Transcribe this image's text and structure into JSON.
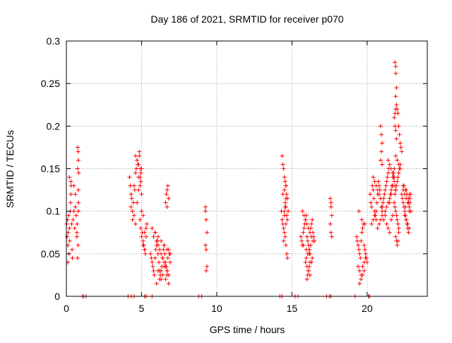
{
  "chart_data": {
    "type": "scatter",
    "title": "Day 186 of 2021, SRMTID for receiver p070",
    "xlabel": "GPS time / hours",
    "ylabel": "SRMTID / TECUs",
    "xlim": [
      0,
      24
    ],
    "ylim": [
      0,
      0.3
    ],
    "xticks": [
      0,
      5,
      10,
      15,
      20
    ],
    "xtick_labels": [
      "0",
      "5",
      "10",
      "15",
      "20"
    ],
    "yticks": [
      0,
      0.05,
      0.1,
      0.15,
      0.2,
      0.25,
      0.3
    ],
    "ytick_labels": [
      "0",
      "0.05",
      "0.1",
      "0.15",
      "0.2",
      "0.25",
      "0.3"
    ],
    "grid": true,
    "marker": "+",
    "series_color": "#ff0000",
    "series": [
      {
        "name": "SRMTID",
        "x": [
          0.02,
          0.05,
          0.08,
          0.1,
          0.12,
          0.15,
          0.18,
          0.2,
          0.22,
          0.25,
          0.28,
          0.3,
          0.32,
          0.35,
          0.38,
          0.4,
          0.1,
          0.2,
          0.3,
          0.45,
          0.5,
          0.55,
          0.6,
          0.65,
          0.7,
          0.72,
          0.75,
          0.78,
          0.8,
          0.5,
          0.6,
          0.7,
          0.75,
          0.8,
          0.75,
          0.78,
          0.8,
          0.82,
          0.8,
          1.05,
          1.15,
          1.3,
          4.1,
          4.3,
          4.5,
          4.2,
          4.25,
          4.3,
          4.35,
          4.4,
          4.45,
          4.5,
          4.55,
          4.6,
          4.65,
          4.7,
          4.75,
          4.8,
          4.85,
          4.9,
          4.95,
          5.0,
          4.3,
          4.4,
          4.5,
          4.6,
          4.7,
          4.8,
          4.9,
          5.0,
          4.6,
          4.7,
          4.8,
          4.9,
          4.95,
          4.85,
          4.9,
          4.95,
          5.0,
          5.05,
          5.1,
          5.15,
          5.2,
          5.25,
          5.3,
          5.35,
          5.0,
          5.1,
          5.2,
          5.3,
          5.1,
          5.2,
          5.2,
          5.3,
          5.7,
          5.6,
          5.65,
          5.7,
          5.75,
          5.8,
          5.85,
          5.9,
          5.95,
          6.0,
          6.05,
          6.1,
          6.15,
          6.2,
          6.25,
          6.3,
          6.35,
          6.4,
          6.45,
          6.5,
          6.55,
          6.6,
          6.65,
          6.7,
          6.75,
          6.8,
          6.85,
          6.9,
          5.8,
          5.9,
          6.0,
          6.1,
          6.2,
          6.3,
          6.4,
          6.5,
          6.6,
          6.7,
          6.8,
          5.7,
          5.9,
          6.1,
          6.3,
          6.5,
          6.7,
          6.9,
          6.0,
          6.2,
          6.4,
          6.6,
          6.8,
          6.1,
          6.3,
          6.5,
          6.7,
          6.6,
          6.65,
          6.7,
          6.75,
          6.8,
          6.7,
          8.8,
          9.0,
          9.25,
          9.3,
          9.35,
          9.25,
          9.3,
          9.35,
          9.3,
          9.25,
          14.2,
          14.35,
          14.3,
          14.35,
          14.4,
          14.45,
          14.5,
          14.55,
          14.6,
          14.65,
          14.7,
          14.75,
          14.4,
          14.5,
          14.6,
          14.7,
          14.5,
          14.6,
          14.55,
          14.45,
          14.35,
          14.4,
          14.45,
          14.5,
          14.55,
          14.6,
          14.65,
          14.6,
          14.55,
          14.5,
          14.6,
          14.65,
          14.7,
          15.2,
          15.4,
          15.6,
          15.65,
          15.7,
          15.75,
          15.8,
          15.85,
          15.9,
          15.95,
          16.0,
          16.05,
          16.1,
          16.15,
          16.2,
          16.25,
          16.3,
          16.35,
          16.4,
          16.45,
          16.5,
          15.7,
          15.8,
          15.9,
          16.0,
          16.1,
          16.2,
          16.3,
          16.4,
          15.75,
          15.95,
          16.15,
          16.35,
          15.9,
          16.0,
          16.1,
          16.2,
          16.3,
          15.95,
          16.05,
          16.15,
          16.25,
          16.0,
          16.05,
          16.1,
          16.15,
          16.2,
          17.3,
          17.5,
          17.6,
          17.55,
          17.6,
          17.65,
          17.55,
          17.6,
          17.65,
          17.6,
          19.2,
          19.3,
          19.35,
          19.4,
          19.45,
          19.5,
          19.55,
          19.6,
          19.65,
          19.7,
          19.75,
          19.8,
          19.85,
          19.9,
          19.95,
          20.0,
          19.4,
          19.5,
          19.6,
          19.7,
          19.8,
          19.9,
          19.45,
          19.65,
          19.85,
          19.5,
          19.6,
          19.7,
          19.8,
          20.1,
          20.15,
          20.2,
          20.25,
          20.3,
          20.35,
          20.4,
          20.45,
          20.5,
          20.55,
          20.6,
          20.65,
          20.7,
          20.75,
          20.8,
          20.85,
          20.9,
          20.95,
          21.0,
          20.3,
          20.4,
          20.5,
          20.6,
          20.7,
          20.8,
          20.9,
          21.0,
          20.4,
          20.5,
          20.6,
          20.7,
          20.8,
          20.9,
          21.0,
          21.05,
          21.1,
          21.15,
          21.2,
          21.25,
          21.3,
          21.35,
          21.4,
          21.45,
          21.5,
          21.55,
          21.6,
          21.65,
          21.7,
          21.75,
          21.8,
          21.1,
          21.2,
          21.3,
          21.4,
          21.5,
          21.6,
          21.7,
          20.9,
          20.95,
          21.0,
          20.95,
          20.9,
          21.0,
          21.2,
          21.3,
          21.4,
          21.5,
          21.6,
          21.7,
          21.4,
          21.5,
          21.6,
          21.7,
          21.8,
          21.8,
          21.85,
          21.9,
          21.95,
          22.0,
          22.05,
          22.1,
          22.15,
          22.2,
          22.25,
          22.3,
          21.9,
          22.0,
          22.1,
          22.2,
          21.85,
          21.9,
          21.95,
          22.0,
          22.05,
          22.1,
          22.15,
          22.2,
          21.8,
          21.85,
          21.9,
          21.95,
          22.0,
          22.05,
          22.1,
          21.9,
          21.95,
          22.0,
          22.05,
          22.1,
          21.85,
          21.9,
          21.9,
          21.95,
          21.9,
          21.95,
          21.9,
          21.85,
          21.75,
          21.8,
          21.85,
          21.9,
          22.3,
          22.35,
          22.4,
          22.45,
          22.5,
          22.55,
          22.6,
          22.65,
          22.7,
          22.75,
          22.8,
          22.85,
          22.9,
          22.4,
          22.5,
          22.6,
          22.7,
          22.8,
          22.9,
          22.45,
          22.55,
          22.65,
          22.75,
          22.85,
          22.5,
          22.6,
          22.7,
          22.8,
          22.9,
          22.55,
          22.75,
          22.4,
          22.6,
          22.8
        ],
        "y": [
          0.085,
          0.07,
          0.09,
          0.06,
          0.075,
          0.095,
          0.05,
          0.08,
          0.065,
          0.1,
          0.11,
          0.12,
          0.13,
          0.085,
          0.055,
          0.045,
          0.04,
          0.14,
          0.135,
          0.09,
          0.1,
          0.08,
          0.105,
          0.095,
          0.075,
          0.085,
          0.045,
          0.06,
          0.11,
          0.13,
          0.12,
          0.07,
          0.15,
          0.1,
          0.175,
          0.17,
          0.16,
          0.145,
          0.125,
          0,
          0,
          0,
          0,
          0,
          0,
          0.14,
          0.13,
          0.12,
          0.115,
          0.1,
          0.11,
          0.13,
          0.125,
          0.145,
          0.15,
          0.16,
          0.155,
          0.14,
          0.165,
          0.15,
          0.135,
          0.12,
          0.105,
          0.09,
          0.095,
          0.085,
          0.11,
          0.125,
          0.14,
          0.15,
          0.165,
          0.16,
          0.155,
          0.13,
          0.145,
          0.17,
          0.09,
          0.08,
          0.07,
          0.075,
          0.065,
          0.06,
          0.055,
          0.05,
          0.08,
          0.085,
          0.1,
          0.095,
          0.075,
          0.07,
          0.06,
          0.055,
          0,
          0,
          0,
          0.05,
          0.045,
          0.04,
          0.035,
          0.03,
          0.025,
          0.045,
          0.055,
          0.06,
          0.065,
          0.05,
          0.04,
          0.03,
          0.025,
          0.02,
          0.035,
          0.045,
          0.055,
          0.06,
          0.05,
          0.04,
          0.035,
          0.03,
          0.045,
          0.055,
          0.05,
          0.04,
          0.07,
          0.075,
          0.065,
          0.06,
          0.055,
          0.05,
          0.045,
          0.04,
          0.035,
          0.03,
          0.025,
          0.08,
          0.075,
          0.07,
          0.065,
          0.06,
          0.055,
          0.05,
          0.015,
          0.02,
          0.025,
          0.02,
          0.015,
          0.03,
          0.03,
          0.035,
          0.025,
          0.11,
          0.12,
          0.125,
          0.13,
          0.115,
          0.105,
          0,
          0,
          0.1,
          0.09,
          0.075,
          0.06,
          0.055,
          0.035,
          0.03,
          0.105,
          0,
          0,
          0.1,
          0.09,
          0.085,
          0.08,
          0.075,
          0.11,
          0.105,
          0.095,
          0.09,
          0.1,
          0.12,
          0.125,
          0.13,
          0.115,
          0.095,
          0.085,
          0.07,
          0.065,
          0.165,
          0.155,
          0.15,
          0.14,
          0.135,
          0.13,
          0.12,
          0.115,
          0.105,
          0.1,
          0.06,
          0.05,
          0.045,
          0,
          0,
          0.07,
          0.065,
          0.06,
          0.075,
          0.08,
          0.085,
          0.09,
          0.095,
          0.07,
          0.065,
          0.06,
          0.055,
          0.05,
          0.08,
          0.085,
          0.09,
          0.075,
          0.07,
          0.065,
          0.1,
          0.095,
          0.09,
          0.085,
          0.08,
          0.075,
          0.07,
          0.065,
          0.06,
          0.055,
          0.05,
          0.045,
          0.04,
          0.035,
          0.03,
          0.025,
          0.04,
          0.045,
          0.05,
          0.055,
          0.06,
          0.02,
          0.025,
          0.03,
          0.035,
          0.04,
          0,
          0,
          0,
          0.115,
          0.105,
          0.095,
          0.085,
          0.075,
          0.07,
          0.11,
          0,
          0.07,
          0.065,
          0.06,
          0.055,
          0.05,
          0.045,
          0.065,
          0.075,
          0.08,
          0.085,
          0.06,
          0.055,
          0.05,
          0.045,
          0.04,
          0.035,
          0.03,
          0.025,
          0.035,
          0.04,
          0.045,
          0.1,
          0.09,
          0.085,
          0.015,
          0.02,
          0.025,
          0.03,
          0,
          0,
          0.12,
          0.11,
          0.105,
          0.13,
          0.125,
          0.115,
          0.1,
          0.095,
          0.09,
          0.11,
          0.12,
          0.135,
          0.13,
          0.125,
          0.115,
          0.105,
          0.1,
          0.085,
          0.09,
          0.095,
          0.1,
          0.08,
          0.085,
          0.09,
          0.095,
          0.14,
          0.135,
          0.13,
          0.125,
          0.12,
          0.115,
          0.105,
          0.11,
          0.115,
          0.12,
          0.125,
          0.13,
          0.135,
          0.14,
          0.145,
          0.15,
          0.11,
          0.12,
          0.125,
          0.13,
          0.14,
          0.145,
          0.15,
          0.09,
          0.095,
          0.085,
          0.08,
          0.075,
          0.09,
          0.095,
          0.2,
          0.19,
          0.18,
          0.17,
          0.16,
          0.155,
          0.1,
          0.105,
          0.11,
          0.115,
          0.12,
          0.13,
          0.16,
          0.155,
          0.15,
          0.145,
          0.14,
          0.21,
          0.2,
          0.195,
          0.185,
          0.22,
          0.215,
          0.2,
          0.19,
          0.18,
          0.175,
          0.17,
          0.165,
          0.16,
          0.155,
          0.15,
          0.12,
          0.125,
          0.13,
          0.135,
          0.14,
          0.145,
          0.15,
          0.155,
          0.11,
          0.105,
          0.1,
          0.095,
          0.09,
          0.085,
          0.08,
          0.07,
          0.065,
          0.06,
          0.065,
          0.075,
          0.275,
          0.27,
          0.262,
          0.245,
          0.235,
          0.225,
          0.22,
          0.215,
          0.14,
          0.135,
          0.13,
          0.125,
          0.12,
          0.115,
          0.11,
          0.105,
          0.1,
          0.095,
          0.09,
          0.085,
          0.08,
          0.075,
          0.1,
          0.115,
          0.12,
          0.125,
          0.12,
          0.115,
          0.11,
          0.105,
          0.1,
          0.13,
          0.125,
          0.12,
          0.115,
          0.11,
          0.095,
          0.09,
          0.085,
          0.08,
          0.1,
          0.105,
          0.11,
          0.13,
          0.125,
          0.12
        ]
      }
    ]
  }
}
